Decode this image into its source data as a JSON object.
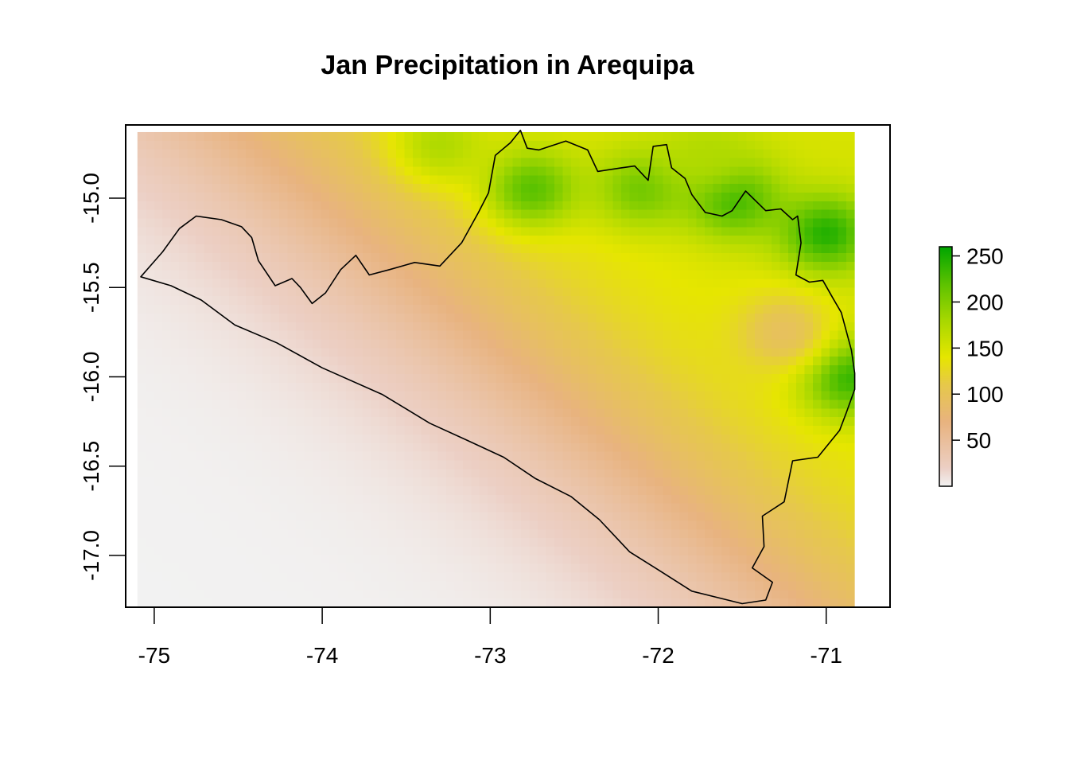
{
  "chart_data": {
    "type": "heatmap",
    "title": "Jan Precipitation in Arequipa",
    "xlabel": "",
    "ylabel": "",
    "x_range": [
      -75.17,
      -70.62
    ],
    "y_range": [
      -17.29,
      -14.59
    ],
    "x_ticks": [
      {
        "value": -75,
        "label": "-75"
      },
      {
        "value": -74,
        "label": "-74"
      },
      {
        "value": -73,
        "label": "-73"
      },
      {
        "value": -72,
        "label": "-72"
      },
      {
        "value": -71,
        "label": "-71"
      }
    ],
    "y_ticks": [
      {
        "value": -15.0,
        "label": "-15.0"
      },
      {
        "value": -15.5,
        "label": "-15.5"
      },
      {
        "value": -16.0,
        "label": "-16.0"
      },
      {
        "value": -16.5,
        "label": "-16.5"
      },
      {
        "value": -17.0,
        "label": "-17.0"
      }
    ],
    "data_extent": {
      "lon": [
        -75.1,
        -70.83
      ],
      "lat": [
        -17.29,
        -14.63
      ]
    },
    "colorbar": {
      "min": 0,
      "max": 260,
      "ticks": [
        {
          "value": 50,
          "label": "50"
        },
        {
          "value": 100,
          "label": "100"
        },
        {
          "value": 150,
          "label": "150"
        },
        {
          "value": 200,
          "label": "200"
        },
        {
          "value": 250,
          "label": "250"
        }
      ],
      "colors": [
        "#f2f2f2",
        "#eccfc4",
        "#e8b37f",
        "#e6c84b",
        "#e6e600",
        "#a8d800",
        "#5cc200",
        "#00a600"
      ],
      "stops": [
        0,
        20,
        70,
        110,
        140,
        180,
        220,
        260
      ]
    },
    "peaks": [
      {
        "lon": -72.75,
        "lat": -14.95,
        "value": 230
      },
      {
        "lon": -72.1,
        "lat": -14.95,
        "value": 215
      },
      {
        "lon": -71.55,
        "lat": -15.0,
        "value": 245
      },
      {
        "lon": -71.0,
        "lat": -15.2,
        "value": 255
      },
      {
        "lon": -70.87,
        "lat": -16.0,
        "value": 250
      },
      {
        "lon": -71.25,
        "lat": -15.75,
        "value": 90
      },
      {
        "lon": -73.3,
        "lat": -14.7,
        "value": 180
      },
      {
        "lon": -71.7,
        "lat": -14.75,
        "value": 175
      }
    ],
    "boundary": {
      "name": "Arequipa",
      "coordinates": [
        [
          -75.08,
          -15.44
        ],
        [
          -74.95,
          -15.3
        ],
        [
          -74.85,
          -15.17
        ],
        [
          -74.75,
          -15.1
        ],
        [
          -74.6,
          -15.12
        ],
        [
          -74.48,
          -15.16
        ],
        [
          -74.42,
          -15.22
        ],
        [
          -74.38,
          -15.35
        ],
        [
          -74.28,
          -15.49
        ],
        [
          -74.18,
          -15.45
        ],
        [
          -74.13,
          -15.5
        ],
        [
          -74.06,
          -15.59
        ],
        [
          -73.98,
          -15.53
        ],
        [
          -73.89,
          -15.4
        ],
        [
          -73.8,
          -15.32
        ],
        [
          -73.72,
          -15.43
        ],
        [
          -73.6,
          -15.4
        ],
        [
          -73.45,
          -15.36
        ],
        [
          -73.3,
          -15.38
        ],
        [
          -73.17,
          -15.25
        ],
        [
          -73.07,
          -15.08
        ],
        [
          -73.01,
          -14.97
        ],
        [
          -72.97,
          -14.76
        ],
        [
          -72.88,
          -14.69
        ],
        [
          -72.82,
          -14.62
        ],
        [
          -72.78,
          -14.72
        ],
        [
          -72.71,
          -14.73
        ],
        [
          -72.55,
          -14.68
        ],
        [
          -72.42,
          -14.73
        ],
        [
          -72.36,
          -14.85
        ],
        [
          -72.22,
          -14.83
        ],
        [
          -72.14,
          -14.82
        ],
        [
          -72.06,
          -14.9
        ],
        [
          -72.03,
          -14.71
        ],
        [
          -71.95,
          -14.7
        ],
        [
          -71.92,
          -14.83
        ],
        [
          -71.84,
          -14.89
        ],
        [
          -71.8,
          -14.98
        ],
        [
          -71.72,
          -15.08
        ],
        [
          -71.62,
          -15.1
        ],
        [
          -71.56,
          -15.07
        ],
        [
          -71.48,
          -14.96
        ],
        [
          -71.36,
          -15.07
        ],
        [
          -71.27,
          -15.06
        ],
        [
          -71.2,
          -15.12
        ],
        [
          -71.17,
          -15.1
        ],
        [
          -71.15,
          -15.25
        ],
        [
          -71.18,
          -15.43
        ],
        [
          -71.1,
          -15.47
        ],
        [
          -71.02,
          -15.46
        ],
        [
          -70.96,
          -15.56
        ],
        [
          -70.91,
          -15.64
        ],
        [
          -70.85,
          -15.85
        ],
        [
          -70.83,
          -15.98
        ],
        [
          -70.83,
          -16.07
        ],
        [
          -70.88,
          -16.2
        ],
        [
          -70.92,
          -16.3
        ],
        [
          -71.05,
          -16.45
        ],
        [
          -71.2,
          -16.47
        ],
        [
          -71.25,
          -16.7
        ],
        [
          -71.38,
          -16.78
        ],
        [
          -71.37,
          -16.95
        ],
        [
          -71.44,
          -17.07
        ],
        [
          -71.32,
          -17.15
        ],
        [
          -71.36,
          -17.25
        ],
        [
          -71.5,
          -17.27
        ],
        [
          -71.8,
          -17.2
        ],
        [
          -72.0,
          -17.08
        ],
        [
          -72.17,
          -16.98
        ],
        [
          -72.35,
          -16.8
        ],
        [
          -72.52,
          -16.67
        ],
        [
          -72.73,
          -16.57
        ],
        [
          -72.92,
          -16.45
        ],
        [
          -73.15,
          -16.35
        ],
        [
          -73.36,
          -16.26
        ],
        [
          -73.64,
          -16.1
        ],
        [
          -74.0,
          -15.95
        ],
        [
          -74.27,
          -15.81
        ],
        [
          -74.52,
          -15.71
        ],
        [
          -74.72,
          -15.57
        ],
        [
          -74.9,
          -15.49
        ],
        [
          -75.08,
          -15.44
        ]
      ]
    }
  }
}
